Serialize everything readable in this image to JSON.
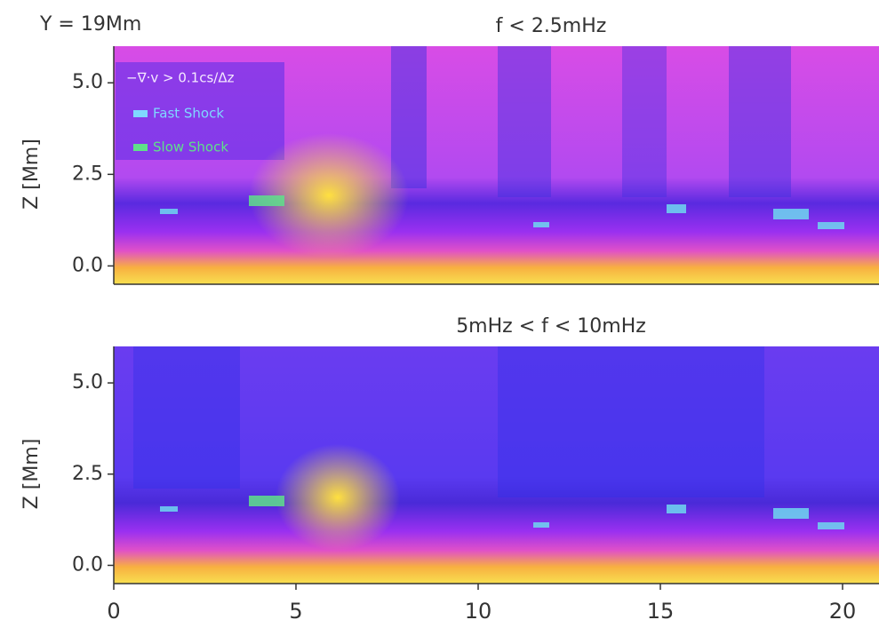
{
  "figure_label": "Y = 19Mm",
  "chart_data": [
    {
      "type": "heatmap",
      "title": "f < 2.5mHz",
      "ylabel": "Z [Mm]",
      "xlim": [
        0,
        21
      ],
      "ylim": [
        -0.5,
        6
      ],
      "yticks": [
        {
          "value": 0,
          "label": "0.0"
        },
        {
          "value": 2.5,
          "label": "2.5"
        },
        {
          "value": 5,
          "label": "5.0"
        }
      ],
      "legend": {
        "title": "−∇·v > 0.1cs/Δz",
        "entries": [
          {
            "name": "Fast Shock",
            "color": "#7fd8ff"
          },
          {
            "name": "Slow Shock",
            "color": "#5fe08a"
          }
        ]
      }
    },
    {
      "type": "heatmap",
      "title": "5mHz < f < 10mHz",
      "ylabel": "Z [Mm]",
      "xlim": [
        0,
        21
      ],
      "ylim": [
        -0.5,
        6
      ],
      "xticks": [
        0,
        5,
        10,
        15,
        20
      ],
      "yticks": [
        {
          "value": 0,
          "label": "0.0"
        },
        {
          "value": 2.5,
          "label": "2.5"
        },
        {
          "value": 5,
          "label": "5.0"
        }
      ]
    }
  ]
}
